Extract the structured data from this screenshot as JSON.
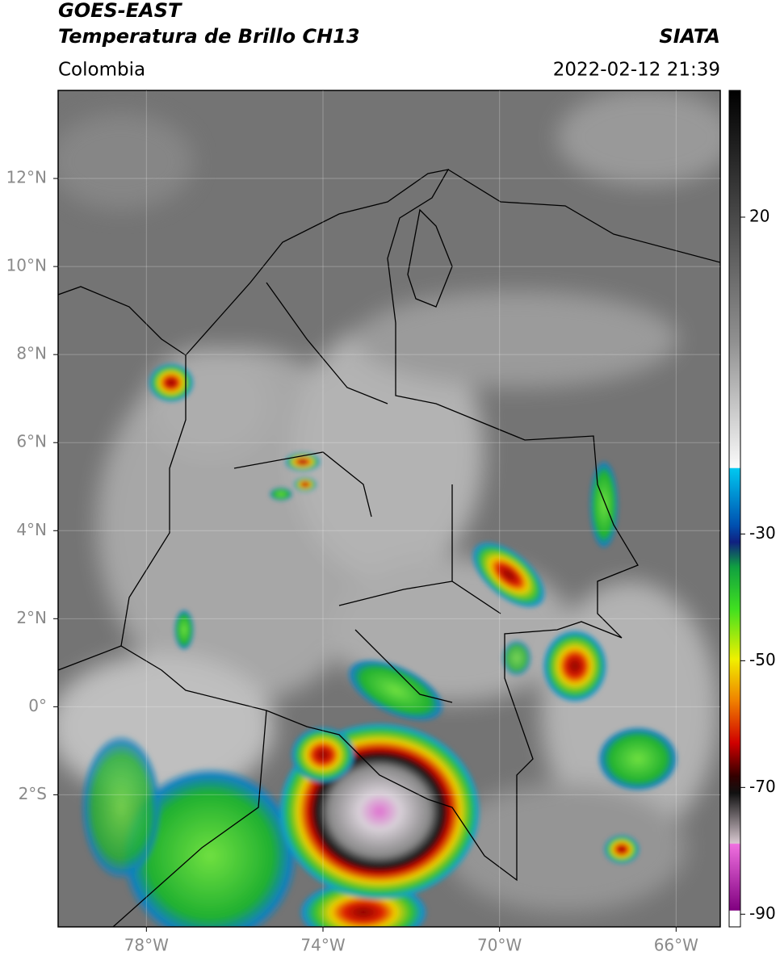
{
  "header": {
    "title": "GOES-EAST",
    "subtitle": "Temperatura de Brillo CH13",
    "agency": "SIATA",
    "region": "Colombia",
    "datetime": "2022-02-12 21:39"
  },
  "map": {
    "xlim": [
      -80,
      -65
    ],
    "ylim": [
      -5,
      14
    ],
    "xticks": [
      {
        "value": -78,
        "label": "78°W"
      },
      {
        "value": -74,
        "label": "74°W"
      },
      {
        "value": -70,
        "label": "70°W"
      },
      {
        "value": -66,
        "label": "66°W"
      }
    ],
    "yticks": [
      {
        "value": 12,
        "label": "12°N"
      },
      {
        "value": 10,
        "label": "10°N"
      },
      {
        "value": 8,
        "label": "8°N"
      },
      {
        "value": 6,
        "label": "6°N"
      },
      {
        "value": 4,
        "label": "4°N"
      },
      {
        "value": 2,
        "label": "2°N"
      },
      {
        "value": 0,
        "label": "0°"
      },
      {
        "value": -2,
        "label": "2°S"
      }
    ]
  },
  "colorbar": {
    "lim": [
      -92,
      40
    ],
    "ticks": [
      20,
      -30,
      -50,
      -70,
      -90
    ]
  }
}
